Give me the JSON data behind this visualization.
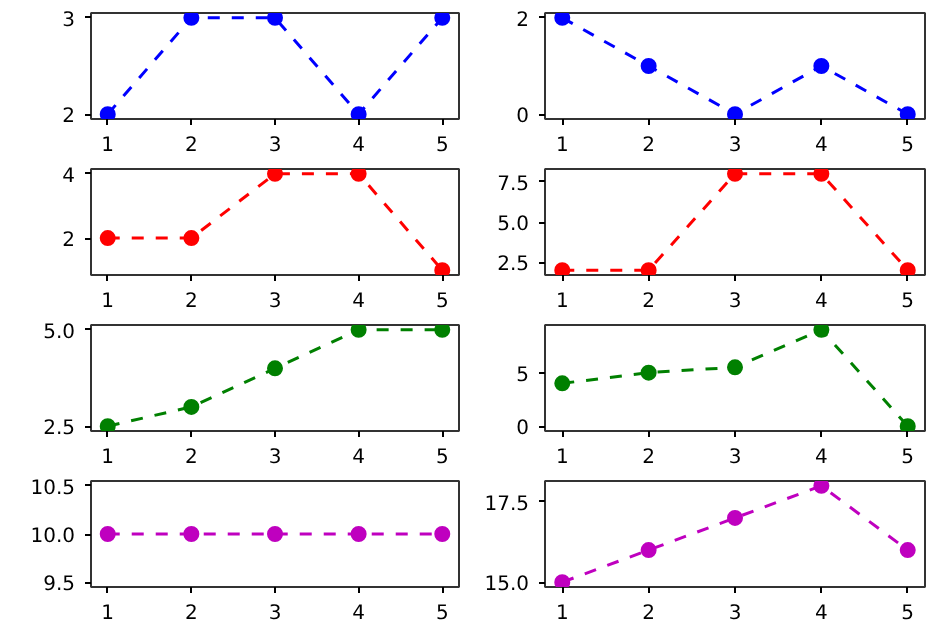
{
  "chart_data": [
    {
      "type": "line",
      "x": [
        1,
        2,
        3,
        4,
        5
      ],
      "series": [
        {
          "color": "#0000ff",
          "values": [
            2,
            3,
            3,
            2,
            3
          ]
        }
      ],
      "xlim": [
        0.8,
        5.2
      ],
      "xticks": [
        1,
        2,
        3,
        4,
        5
      ],
      "ylim": [
        1.95,
        3.05
      ],
      "yticks": [
        2,
        3
      ],
      "marker": "circle",
      "line_style": "dashed",
      "grid": false
    },
    {
      "type": "line",
      "x": [
        1,
        2,
        3,
        4,
        5
      ],
      "series": [
        {
          "color": "#0000ff",
          "values": [
            2,
            1,
            0,
            1,
            0
          ]
        }
      ],
      "xlim": [
        0.8,
        5.2
      ],
      "xticks": [
        1,
        2,
        3,
        4,
        5
      ],
      "ylim": [
        -0.1,
        2.1
      ],
      "yticks": [
        0,
        2
      ],
      "marker": "circle",
      "line_style": "dashed",
      "grid": false
    },
    {
      "type": "line",
      "x": [
        1,
        2,
        3,
        4,
        5
      ],
      "series": [
        {
          "color": "#ff0000",
          "values": [
            2,
            2,
            4,
            4,
            1
          ]
        }
      ],
      "xlim": [
        0.8,
        5.2
      ],
      "xticks": [
        1,
        2,
        3,
        4,
        5
      ],
      "ylim": [
        0.85,
        4.15
      ],
      "yticks": [
        2,
        4
      ],
      "marker": "circle",
      "line_style": "dashed",
      "grid": false
    },
    {
      "type": "line",
      "x": [
        1,
        2,
        3,
        4,
        5
      ],
      "series": [
        {
          "color": "#ff0000",
          "values": [
            2,
            2,
            8,
            8,
            2
          ]
        }
      ],
      "xlim": [
        0.8,
        5.2
      ],
      "xticks": [
        1,
        2,
        3,
        4,
        5
      ],
      "ylim": [
        1.7,
        8.3
      ],
      "yticks": [
        2.5,
        {
          "value": 5,
          "label": "5.0"
        },
        7.5
      ],
      "marker": "circle",
      "line_style": "dashed",
      "grid": false
    },
    {
      "type": "line",
      "x": [
        1,
        2,
        3,
        4,
        5
      ],
      "series": [
        {
          "color": "#008000",
          "values": [
            2.5,
            3,
            4,
            5,
            5
          ]
        }
      ],
      "xlim": [
        0.8,
        5.2
      ],
      "xticks": [
        1,
        2,
        3,
        4,
        5
      ],
      "ylim": [
        2.375,
        5.125
      ],
      "yticks": [
        2.5,
        {
          "value": 5,
          "label": "5.0"
        }
      ],
      "marker": "circle",
      "line_style": "dashed",
      "grid": false
    },
    {
      "type": "line",
      "x": [
        1,
        2,
        3,
        4,
        5
      ],
      "series": [
        {
          "color": "#008000",
          "values": [
            4,
            5,
            5.5,
            9,
            0
          ]
        }
      ],
      "xlim": [
        0.8,
        5.2
      ],
      "xticks": [
        1,
        2,
        3,
        4,
        5
      ],
      "ylim": [
        -0.45,
        9.45
      ],
      "yticks": [
        0,
        5
      ],
      "marker": "circle",
      "line_style": "dashed",
      "grid": false
    },
    {
      "type": "line",
      "x": [
        1,
        2,
        3,
        4,
        5
      ],
      "series": [
        {
          "color": "#bf00bf",
          "values": [
            10,
            10,
            10,
            10,
            10
          ]
        }
      ],
      "xlim": [
        0.8,
        5.2
      ],
      "xticks": [
        1,
        2,
        3,
        4,
        5
      ],
      "ylim": [
        9.45,
        10.55
      ],
      "yticks": [
        9.5,
        {
          "value": 10,
          "label": "10.0"
        },
        10.5
      ],
      "marker": "circle",
      "line_style": "dashed",
      "grid": false
    },
    {
      "type": "line",
      "x": [
        1,
        2,
        3,
        4,
        5
      ],
      "series": [
        {
          "color": "#bf00bf",
          "values": [
            15,
            16,
            17,
            18,
            16
          ]
        }
      ],
      "xlim": [
        0.8,
        5.2
      ],
      "xticks": [
        1,
        2,
        3,
        4,
        5
      ],
      "ylim": [
        14.85,
        18.15
      ],
      "yticks": [
        {
          "value": 15,
          "label": "15.0"
        },
        17.5
      ],
      "marker": "circle",
      "line_style": "dashed",
      "grid": false
    }
  ]
}
